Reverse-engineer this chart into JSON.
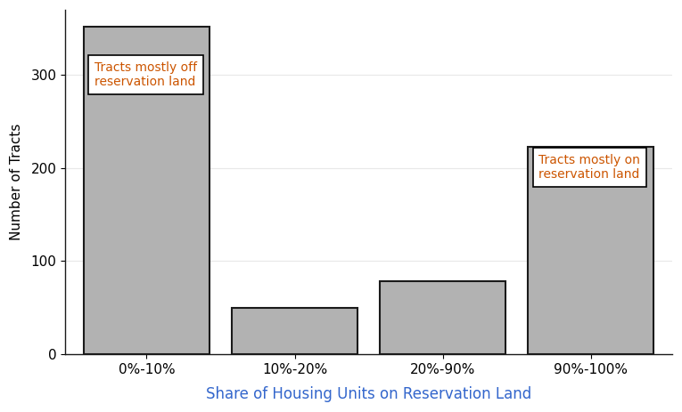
{
  "categories": [
    "0%-10%",
    "10%-20%",
    "20%-90%",
    "90%-100%"
  ],
  "values": [
    352,
    50,
    78,
    223
  ],
  "bar_color": "#b2b2b2",
  "bar_edgecolor": "#1a1a1a",
  "xlabel": "Share of Housing Units on Reservation Land",
  "ylabel": "Number of Tracts",
  "xlabel_color": "#3366cc",
  "ylabel_color": "#000000",
  "ylim": [
    0,
    370
  ],
  "yticks": [
    0,
    100,
    200,
    300
  ],
  "annotation1_text": "Tracts mostly off\nreservation land",
  "annotation1_color": "#cc5500",
  "annotation2_text": "Tracts mostly on\nreservation land",
  "annotation2_color": "#cc5500",
  "grid_color": "#e8e8e8",
  "background_color": "#ffffff"
}
